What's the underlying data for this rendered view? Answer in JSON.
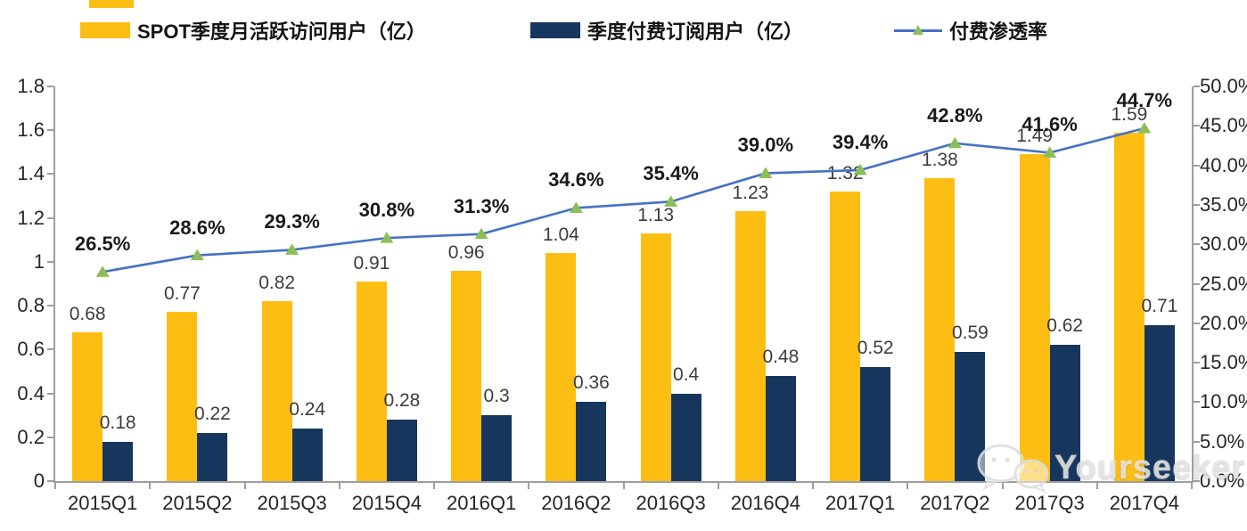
{
  "colors": {
    "bar_yellow": "#FDBE14",
    "bar_navy": "#17365D",
    "line_blue": "#4472C4",
    "marker_green": "#8DBE57",
    "axis_gray": "#9E9E9E"
  },
  "legend": {
    "items": [
      {
        "label": "SPOT季度月活跃访问用户（亿）",
        "swatch": "yellow-bar"
      },
      {
        "label": "季度付费订阅用户（亿）",
        "swatch": "navy-bar"
      },
      {
        "label": "付费渗透率",
        "swatch": "line-with-triangle-marker"
      }
    ]
  },
  "chart_data": {
    "type": "bar+line combo",
    "categories": [
      "2015Q1",
      "2015Q2",
      "2015Q3",
      "2015Q4",
      "2016Q1",
      "2016Q2",
      "2016Q3",
      "2016Q4",
      "2017Q1",
      "2017Q2",
      "2017Q3",
      "2017Q4"
    ],
    "series": [
      {
        "name": "SPOT季度月活跃访问用户（亿）",
        "type": "bar",
        "axis": "left",
        "color": "#FDBE14",
        "values": [
          0.68,
          0.77,
          0.82,
          0.91,
          0.96,
          1.04,
          1.13,
          1.23,
          1.32,
          1.38,
          1.49,
          1.59
        ],
        "labels": [
          "0.68",
          "0.77",
          "0.82",
          "0.91",
          "0.96",
          "1.04",
          "1.13",
          "1.23",
          "1.32",
          "1.38",
          "1.49",
          "1.59"
        ]
      },
      {
        "name": "季度付费订阅用户（亿）",
        "type": "bar",
        "axis": "left",
        "color": "#17365D",
        "values": [
          0.18,
          0.22,
          0.24,
          0.28,
          0.3,
          0.36,
          0.4,
          0.48,
          0.52,
          0.59,
          0.62,
          0.71
        ],
        "labels": [
          "0.18",
          "0.22",
          "0.24",
          "0.28",
          "0.3",
          "0.36",
          "0.4",
          "0.48",
          "0.52",
          "0.59",
          "0.62",
          "0.71"
        ]
      },
      {
        "name": "付费渗透率",
        "type": "line",
        "axis": "right",
        "color": "#4472C4",
        "marker": "triangle",
        "marker_color": "#8DBE57",
        "values": [
          26.5,
          28.6,
          29.3,
          30.8,
          31.3,
          34.6,
          35.4,
          39.0,
          39.4,
          42.8,
          41.6,
          44.7
        ],
        "labels": [
          "26.5%",
          "28.6%",
          "29.3%",
          "30.8%",
          "31.3%",
          "34.6%",
          "35.4%",
          "39.0%",
          "39.4%",
          "42.8%",
          "41.6%",
          "44.7%"
        ]
      }
    ],
    "left_axis": {
      "min": 0,
      "max": 1.8,
      "step": 0.2,
      "ticks": [
        "0",
        "0.2",
        "0.4",
        "0.6",
        "0.8",
        "1",
        "1.2",
        "1.4",
        "1.6",
        "1.8"
      ]
    },
    "right_axis": {
      "min": 0,
      "max": 50,
      "step": 5,
      "ticks": [
        "0.0%",
        "5.0%",
        "10.0%",
        "15.0%",
        "20.0%",
        "25.0%",
        "30.0%",
        "35.0%",
        "40.0%",
        "45.0%",
        "50.0%"
      ]
    },
    "grid": false,
    "legend_position": "top"
  },
  "watermark": {
    "text": "Yourseeker",
    "icon": "wechat-chat-bubbles-icon"
  }
}
